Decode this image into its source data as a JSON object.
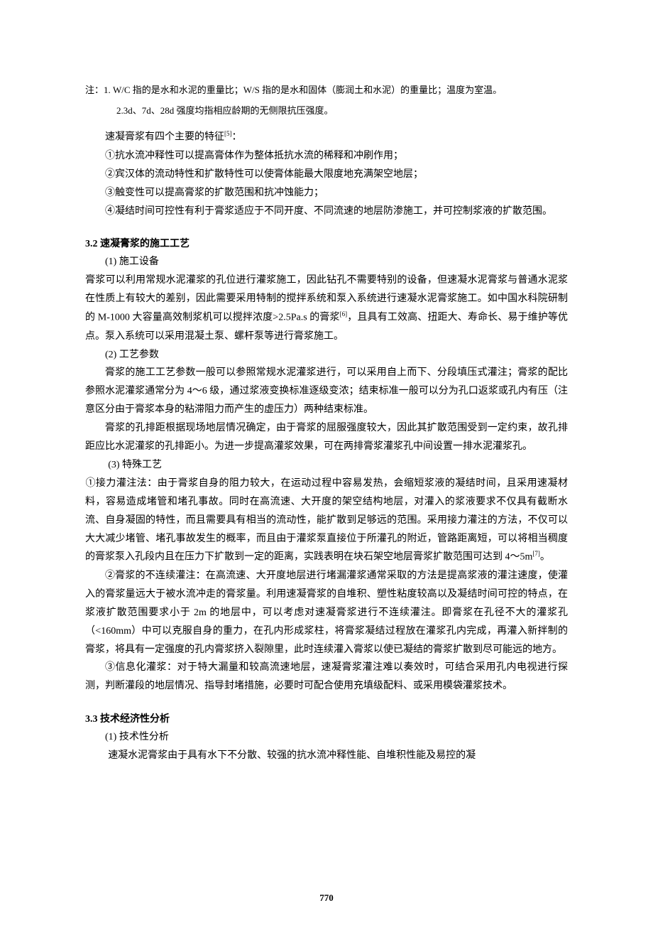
{
  "notes": {
    "line1": "注：1. W/C 指的是水和水泥的重量比；W/S 指的是水和固体（膨润土和水泥）的重量比；温度为室温。",
    "line2": "2.3d、7d、28d 强度均指相应龄期的无侧限抗压强度。"
  },
  "intro": {
    "heading": "速凝膏浆有四个主要的特征",
    "ref": "[5]",
    "colon": "：",
    "item1": "①抗水流冲释性可以提高膏体作为整体抵抗水流的稀释和冲刷作用；",
    "item2": "②宾汉体的流动特性和扩散特性可以使膏体能最大限度地充满架空地层；",
    "item3": "③触变性可以提高膏浆的扩散范围和抗冲蚀能力；",
    "item4": "④凝结时间可控性有利于膏浆适应于不同开度、不同流速的地层防渗施工，并可控制浆液的扩散范围。"
  },
  "section32": {
    "heading": "3.2 速凝膏浆的施工工艺",
    "sub1": {
      "title": "(1) 施工设备",
      "p1": "膏浆可以利用常规水泥灌浆的孔位进行灌浆施工，因此钻孔不需要特别的设备，但速凝水泥膏浆与普通水泥浆在性质上有较大的差别，因此需要采用特制的搅拌系统和泵入系统进行速凝水泥膏浆施工。如中国水科院研制的 M-1000 大容量高效制浆机可以搅拌浓度>2.5Pa.s 的膏浆",
      "ref": "[6]",
      "p1_cont": "，且具有工效高、扭距大、寿命长、易于维护等优点。泵入系统可以采用混凝土泵、螺杆泵等进行膏浆施工。"
    },
    "sub2": {
      "title": "(2) 工艺参数",
      "p1": "膏浆的施工工艺参数一般可以参照常规水泥灌浆进行，可以采用自上而下、分段填压式灌注；膏浆的配比参照水泥灌浆通常分为 4～6 级，通过浆液变换标准逐级变浓；结束标准一般可以分为孔口返浆或孔内有压（注意区分由于膏浆本身的粘滞阻力而产生的虚压力）两种结束标准。",
      "p2": "膏浆的孔排距根据现场地层情况确定，由于膏浆的屈服强度较大，因此其扩散范围受到一定约束，故孔排距应比水泥灌浆的孔排距小。为进一步提高灌浆效果，可在两排膏浆灌浆孔中间设置一排水泥灌浆孔。"
    },
    "sub3": {
      "title": "(3) 特殊工艺",
      "p1_pre": "①接力灌注法：由于膏浆自身的阻力较大，在运动过程中容易发热，会缩短浆液的凝结时间，且采用速凝材料，容易造成堵管和堵孔事故。同时在高流速、大开度的架空结构地层，对灌入的浆液要求不仅具有截断水流、自身凝固的特性，而且需要具有相当的流动性，能扩散到足够远的范围。采用接力灌注的方法，不仅可以大大减少堵管、堵孔事故发生的概率，而且由于灌浆泵直接位于所灌孔的附近，管路距离短，可以将相当稠度的膏浆泵入孔段内且在压力下扩散到一定的距离，实践表明在块石架空地层膏浆扩散范围可达到 4～5m",
      "ref": "[7]",
      "p1_post": "。",
      "p2": "②膏浆的不连续灌注：在高流速、大开度地层进行堵漏灌浆通常采取的方法是提高浆液的灌注速度，使灌入的膏浆量远大于被水流冲走的膏浆量。利用速凝膏浆的自堆积、塑性粘度较高以及凝结时间可控的特点，在浆液扩散范围要求小于 2m 的地层中，可以考虑对速凝膏浆进行不连续灌注。即膏浆在孔径不大的灌浆孔（<160mm）中可以克服自身的重力，在孔内形成浆柱，将膏浆凝结过程放在灌浆孔内完成，再灌入新拌制的膏浆，将具有一定强度的孔内膏浆挤入裂隙里，此时连续灌入膏浆以使已凝结的膏浆扩散到尽可能远的地方。",
      "p3": "③信息化灌浆：对于特大漏量和较高流速地层，速凝膏浆灌注难以奏效时，可结合采用孔内电视进行探测，判断灌段的地层情况、指导封堵措施，必要时可配合使用充填级配料、或采用模袋灌浆技术。"
    }
  },
  "section33": {
    "heading": "3.3 技术经济性分析",
    "sub1": {
      "title": "(1) 技术性分析",
      "p1": "速凝水泥膏浆由于具有水下不分散、较强的抗水流冲释性能、自堆积性能及易控的凝"
    }
  },
  "pageNumber": "770",
  "styling": {
    "background_color": "#ffffff",
    "text_color": "#000000",
    "body_fontsize": 14,
    "note_fontsize": 13,
    "heading_fontweight": "bold",
    "line_height": 1.85,
    "font_family": "SimSun"
  }
}
